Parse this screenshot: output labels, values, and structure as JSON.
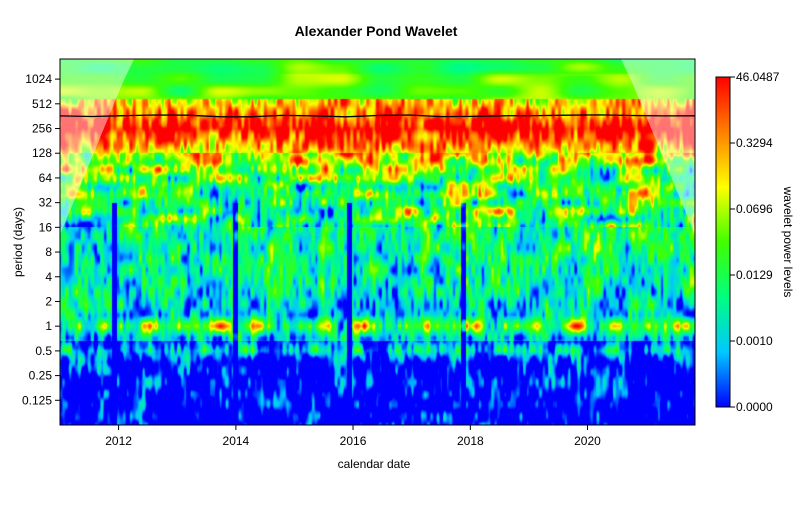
{
  "chart_data": {
    "type": "heatmap",
    "title": "Alexander Pond Wavelet",
    "xlabel": "calendar date",
    "ylabel": "period (days)",
    "colorbar_label": "wavelet power levels",
    "x_range": [
      "2011-01-01",
      "2021-11-01"
    ],
    "x_ticks": [
      "2012",
      "2014",
      "2016",
      "2018",
      "2020"
    ],
    "y_scale": "log2",
    "y_range": [
      0.0625,
      1800
    ],
    "y_ticks": [
      "0.125",
      "0.25",
      "0.5",
      "1",
      "2",
      "4",
      "8",
      "16",
      "32",
      "64",
      "128",
      "256",
      "512",
      "1024"
    ],
    "colorbar_ticks": [
      "0.0000",
      "0.0010",
      "0.0129",
      "0.0696",
      "0.3294",
      "46.0487"
    ],
    "colormap": [
      "#0000ff",
      "#00c8ff",
      "#00ff80",
      "#40ff00",
      "#ffff00",
      "#ff8000",
      "#ff0000"
    ],
    "annual_band_period_days": 365,
    "strong_power_periods_days": [
      1,
      0.5
    ],
    "dominant_high_power_range_days": [
      128,
      512
    ]
  }
}
